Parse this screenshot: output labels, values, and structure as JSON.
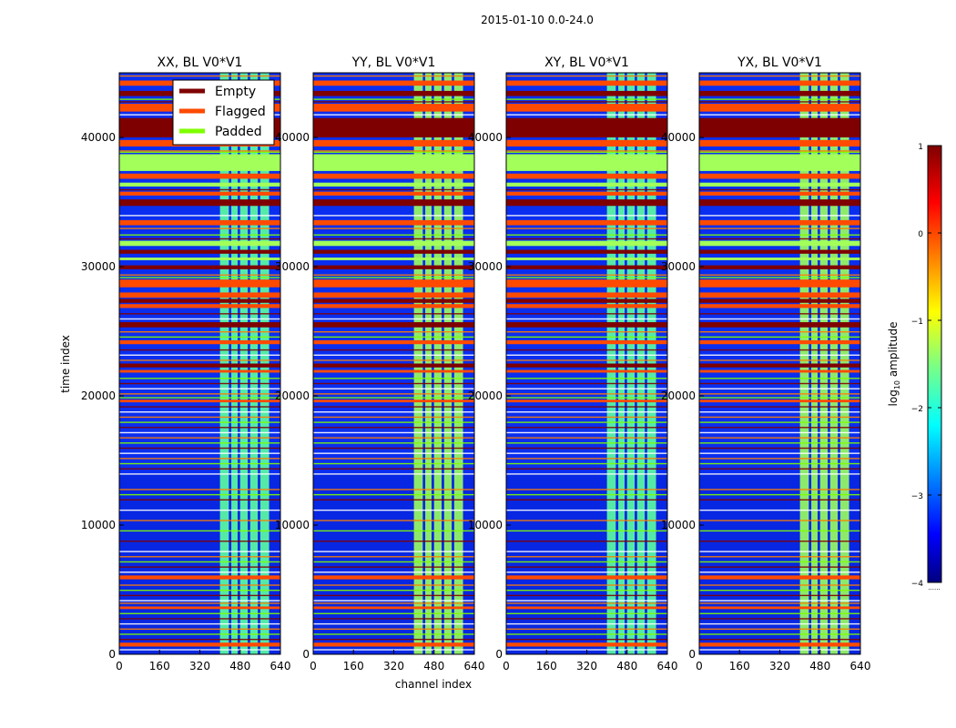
{
  "figure": {
    "suptitle": "2015-01-10 0.0-24.0",
    "ylabel": "time index",
    "xlabel": "channel index",
    "colorbar_label": "log",
    "colorbar_label_sub": "10",
    "colorbar_label_rest": " amplitude",
    "colorbar_dots": "......"
  },
  "legend": {
    "entries": [
      {
        "label": "Empty",
        "color": "#7f0000"
      },
      {
        "label": "Flagged",
        "color": "#ff4a00"
      },
      {
        "label": "Padded",
        "color": "#7fff00"
      }
    ]
  },
  "chart_data": [
    {
      "type": "heatmap",
      "title": "XX, BL V0*V1",
      "xlim": [
        0,
        640
      ],
      "ylim": [
        0,
        45000
      ],
      "xticks": [
        0,
        160,
        320,
        480,
        640
      ],
      "yticks": [
        0,
        10000,
        20000,
        30000,
        40000
      ],
      "ytick_labels": [
        "0",
        "10000",
        "20000",
        "30000",
        "40000"
      ],
      "xtick_labels": [
        "0",
        "160",
        "320",
        "480",
        "640"
      ]
    },
    {
      "type": "heatmap",
      "title": "YY, BL V0*V1",
      "xlim": [
        0,
        640
      ],
      "ylim": [
        0,
        45000
      ],
      "xticks": [
        0,
        160,
        320,
        480,
        640
      ],
      "yticks": [
        0,
        10000,
        20000,
        30000,
        40000
      ],
      "ytick_labels": [
        "0",
        "10000",
        "20000",
        "30000",
        "40000"
      ],
      "xtick_labels": [
        "0",
        "160",
        "320",
        "480",
        "640"
      ]
    },
    {
      "type": "heatmap",
      "title": "XY, BL V0*V1",
      "xlim": [
        0,
        640
      ],
      "ylim": [
        0,
        45000
      ],
      "xticks": [
        0,
        160,
        320,
        480,
        640
      ],
      "yticks": [
        0,
        10000,
        20000,
        30000,
        40000
      ],
      "ytick_labels": [
        "0",
        "10000",
        "20000",
        "30000",
        "40000"
      ],
      "xtick_labels": [
        "0",
        "160",
        "320",
        "480",
        "640"
      ]
    },
    {
      "type": "heatmap",
      "title": "YX, BL V0*V1",
      "xlim": [
        0,
        640
      ],
      "ylim": [
        0,
        45000
      ],
      "xticks": [
        0,
        160,
        320,
        480,
        640
      ],
      "yticks": [
        0,
        10000,
        20000,
        30000,
        40000
      ],
      "ytick_labels": [
        "0",
        "10000",
        "20000",
        "30000",
        "40000"
      ],
      "xtick_labels": [
        "0",
        "160",
        "320",
        "480",
        "640"
      ]
    }
  ],
  "colorbar": {
    "range": [
      -4,
      1
    ],
    "ticks": [
      1,
      0,
      -1,
      -2,
      -3,
      -4
    ],
    "tick_labels": [
      "1",
      "0",
      "−1",
      "−2",
      "−3",
      "−4"
    ],
    "colormap": "jet"
  },
  "bands": {
    "empty": [
      [
        40000,
        41500
      ],
      [
        43200,
        43600
      ],
      [
        34700,
        35200
      ],
      [
        31000,
        31300
      ],
      [
        25300,
        25700
      ],
      [
        22200,
        22500
      ],
      [
        29800,
        30100
      ],
      [
        27200,
        27500
      ]
    ],
    "flagged": [
      [
        42000,
        42600
      ],
      [
        44000,
        44400
      ],
      [
        39300,
        39800
      ],
      [
        36800,
        37200
      ],
      [
        35500,
        35800
      ],
      [
        33200,
        33600
      ],
      [
        28400,
        29000
      ],
      [
        27600,
        28000
      ],
      [
        26800,
        27100
      ],
      [
        24000,
        24300
      ],
      [
        21800,
        22000
      ],
      [
        19500,
        19700
      ],
      [
        5800,
        6100
      ],
      [
        600,
        900
      ],
      [
        3500,
        3700
      ]
    ],
    "padded": [
      [
        37400,
        38700
      ],
      [
        36200,
        36500
      ],
      [
        31600,
        32000
      ],
      [
        30500,
        30700
      ]
    ],
    "thin_lines": [
      44800,
      43000,
      42800,
      41800,
      39000,
      38900,
      36000,
      34000,
      33000,
      32500,
      32200,
      30000,
      29400,
      29200,
      26400,
      26000,
      25000,
      24600,
      23600,
      23200,
      22800,
      21400,
      21000,
      20600,
      20200,
      19900,
      19200,
      18800,
      18400,
      18000,
      17600,
      17200,
      16800,
      16400,
      16000,
      15600,
      15200,
      14800,
      14400,
      14000,
      12800,
      12400,
      12000,
      11200,
      10400,
      9600,
      8800,
      8000,
      7600,
      7200,
      6800,
      6400,
      5400,
      5000,
      4600,
      4200,
      4000,
      3200,
      2800,
      2400,
      2000,
      1600,
      1200,
      400
    ],
    "bright_columns": [
      [
        400,
        435
      ],
      [
        445,
        470
      ],
      [
        480,
        510
      ],
      [
        520,
        550
      ],
      [
        560,
        595
      ]
    ]
  }
}
